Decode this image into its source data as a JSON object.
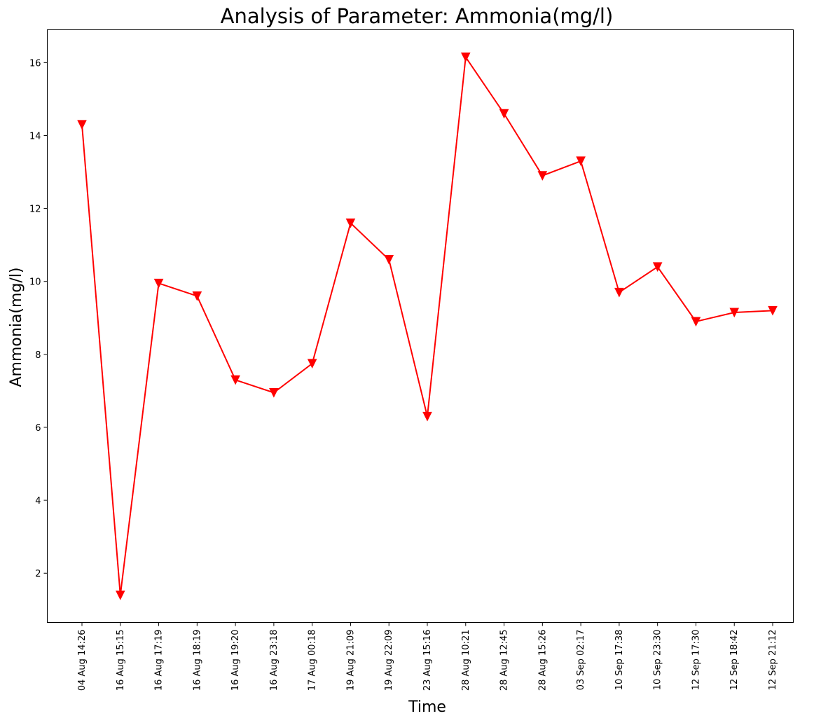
{
  "chart_data": {
    "type": "line",
    "title": "Analysis of Parameter: Ammonia(mg/l)",
    "xlabel": "Time",
    "ylabel": "Ammonia(mg/l)",
    "categories": [
      "04 Aug 14:26",
      "16 Aug 15:15",
      "16 Aug 17:19",
      "16 Aug 18:19",
      "16 Aug 19:20",
      "16 Aug 23:18",
      "17 Aug 00:18",
      "19 Aug 21:09",
      "19 Aug 22:09",
      "23 Aug 15:16",
      "28 Aug 10:21",
      "28 Aug 12:45",
      "28 Aug 15:26",
      "03 Sep 02:17",
      "10 Sep 17:38",
      "10 Sep 23:30",
      "12 Sep 17:30",
      "12 Sep 18:42",
      "12 Sep 21:12"
    ],
    "series": [
      {
        "values": [
          14.3,
          1.4,
          9.95,
          9.6,
          7.3,
          6.95,
          7.75,
          11.6,
          10.6,
          6.3,
          16.15,
          14.6,
          12.9,
          13.3,
          9.7,
          10.4,
          8.9,
          9.15,
          9.2
        ],
        "color": "#ff0000",
        "marker": "triangle-down"
      }
    ],
    "yticks": [
      2,
      4,
      6,
      8,
      10,
      12,
      14,
      16
    ],
    "ylim": [
      0.65,
      16.9
    ],
    "grid": false,
    "legend": "none"
  }
}
